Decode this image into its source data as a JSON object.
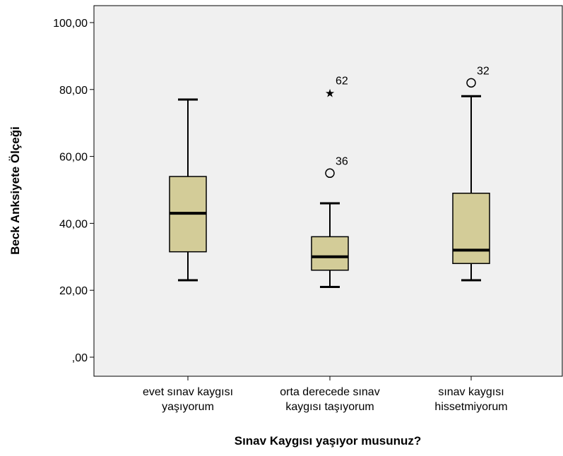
{
  "chart_data": {
    "type": "boxplot",
    "xlabel": "Sınav Kaygısı yaşıyor musunuz?",
    "ylabel": "Beck Anksiyete Ölçeği",
    "ylim": [
      0,
      100
    ],
    "yticks": [
      0,
      20,
      40,
      60,
      80,
      100
    ],
    "ytick_labels": [
      ",00",
      "20,00",
      "40,00",
      "60,00",
      "80,00",
      "100,00"
    ],
    "grid": false,
    "categories": [
      [
        "evet sınav kaygısı",
        "yaşıyorum"
      ],
      [
        "orta derecede sınav",
        "kaygısı taşıyorum"
      ],
      [
        "sınav kaygısı",
        "hissetmiyorum"
      ]
    ],
    "boxes": [
      {
        "min": 23,
        "q1": 31.5,
        "median": 43,
        "q3": 54,
        "max": 77,
        "outliers": []
      },
      {
        "min": 21,
        "q1": 26,
        "median": 30,
        "q3": 36,
        "max": 46,
        "outliers": [
          {
            "value": 55,
            "label": "36",
            "marker": "circle"
          },
          {
            "value": 79,
            "label": "62",
            "marker": "star"
          }
        ]
      },
      {
        "min": 23,
        "q1": 28,
        "median": 32,
        "q3": 49,
        "max": 78,
        "outliers": [
          {
            "value": 82,
            "label": "32",
            "marker": "circle"
          }
        ]
      }
    ],
    "colors": {
      "plot_bg": "#f0f0f0",
      "box_fill": "#d3cc98",
      "line": "#000000"
    }
  }
}
